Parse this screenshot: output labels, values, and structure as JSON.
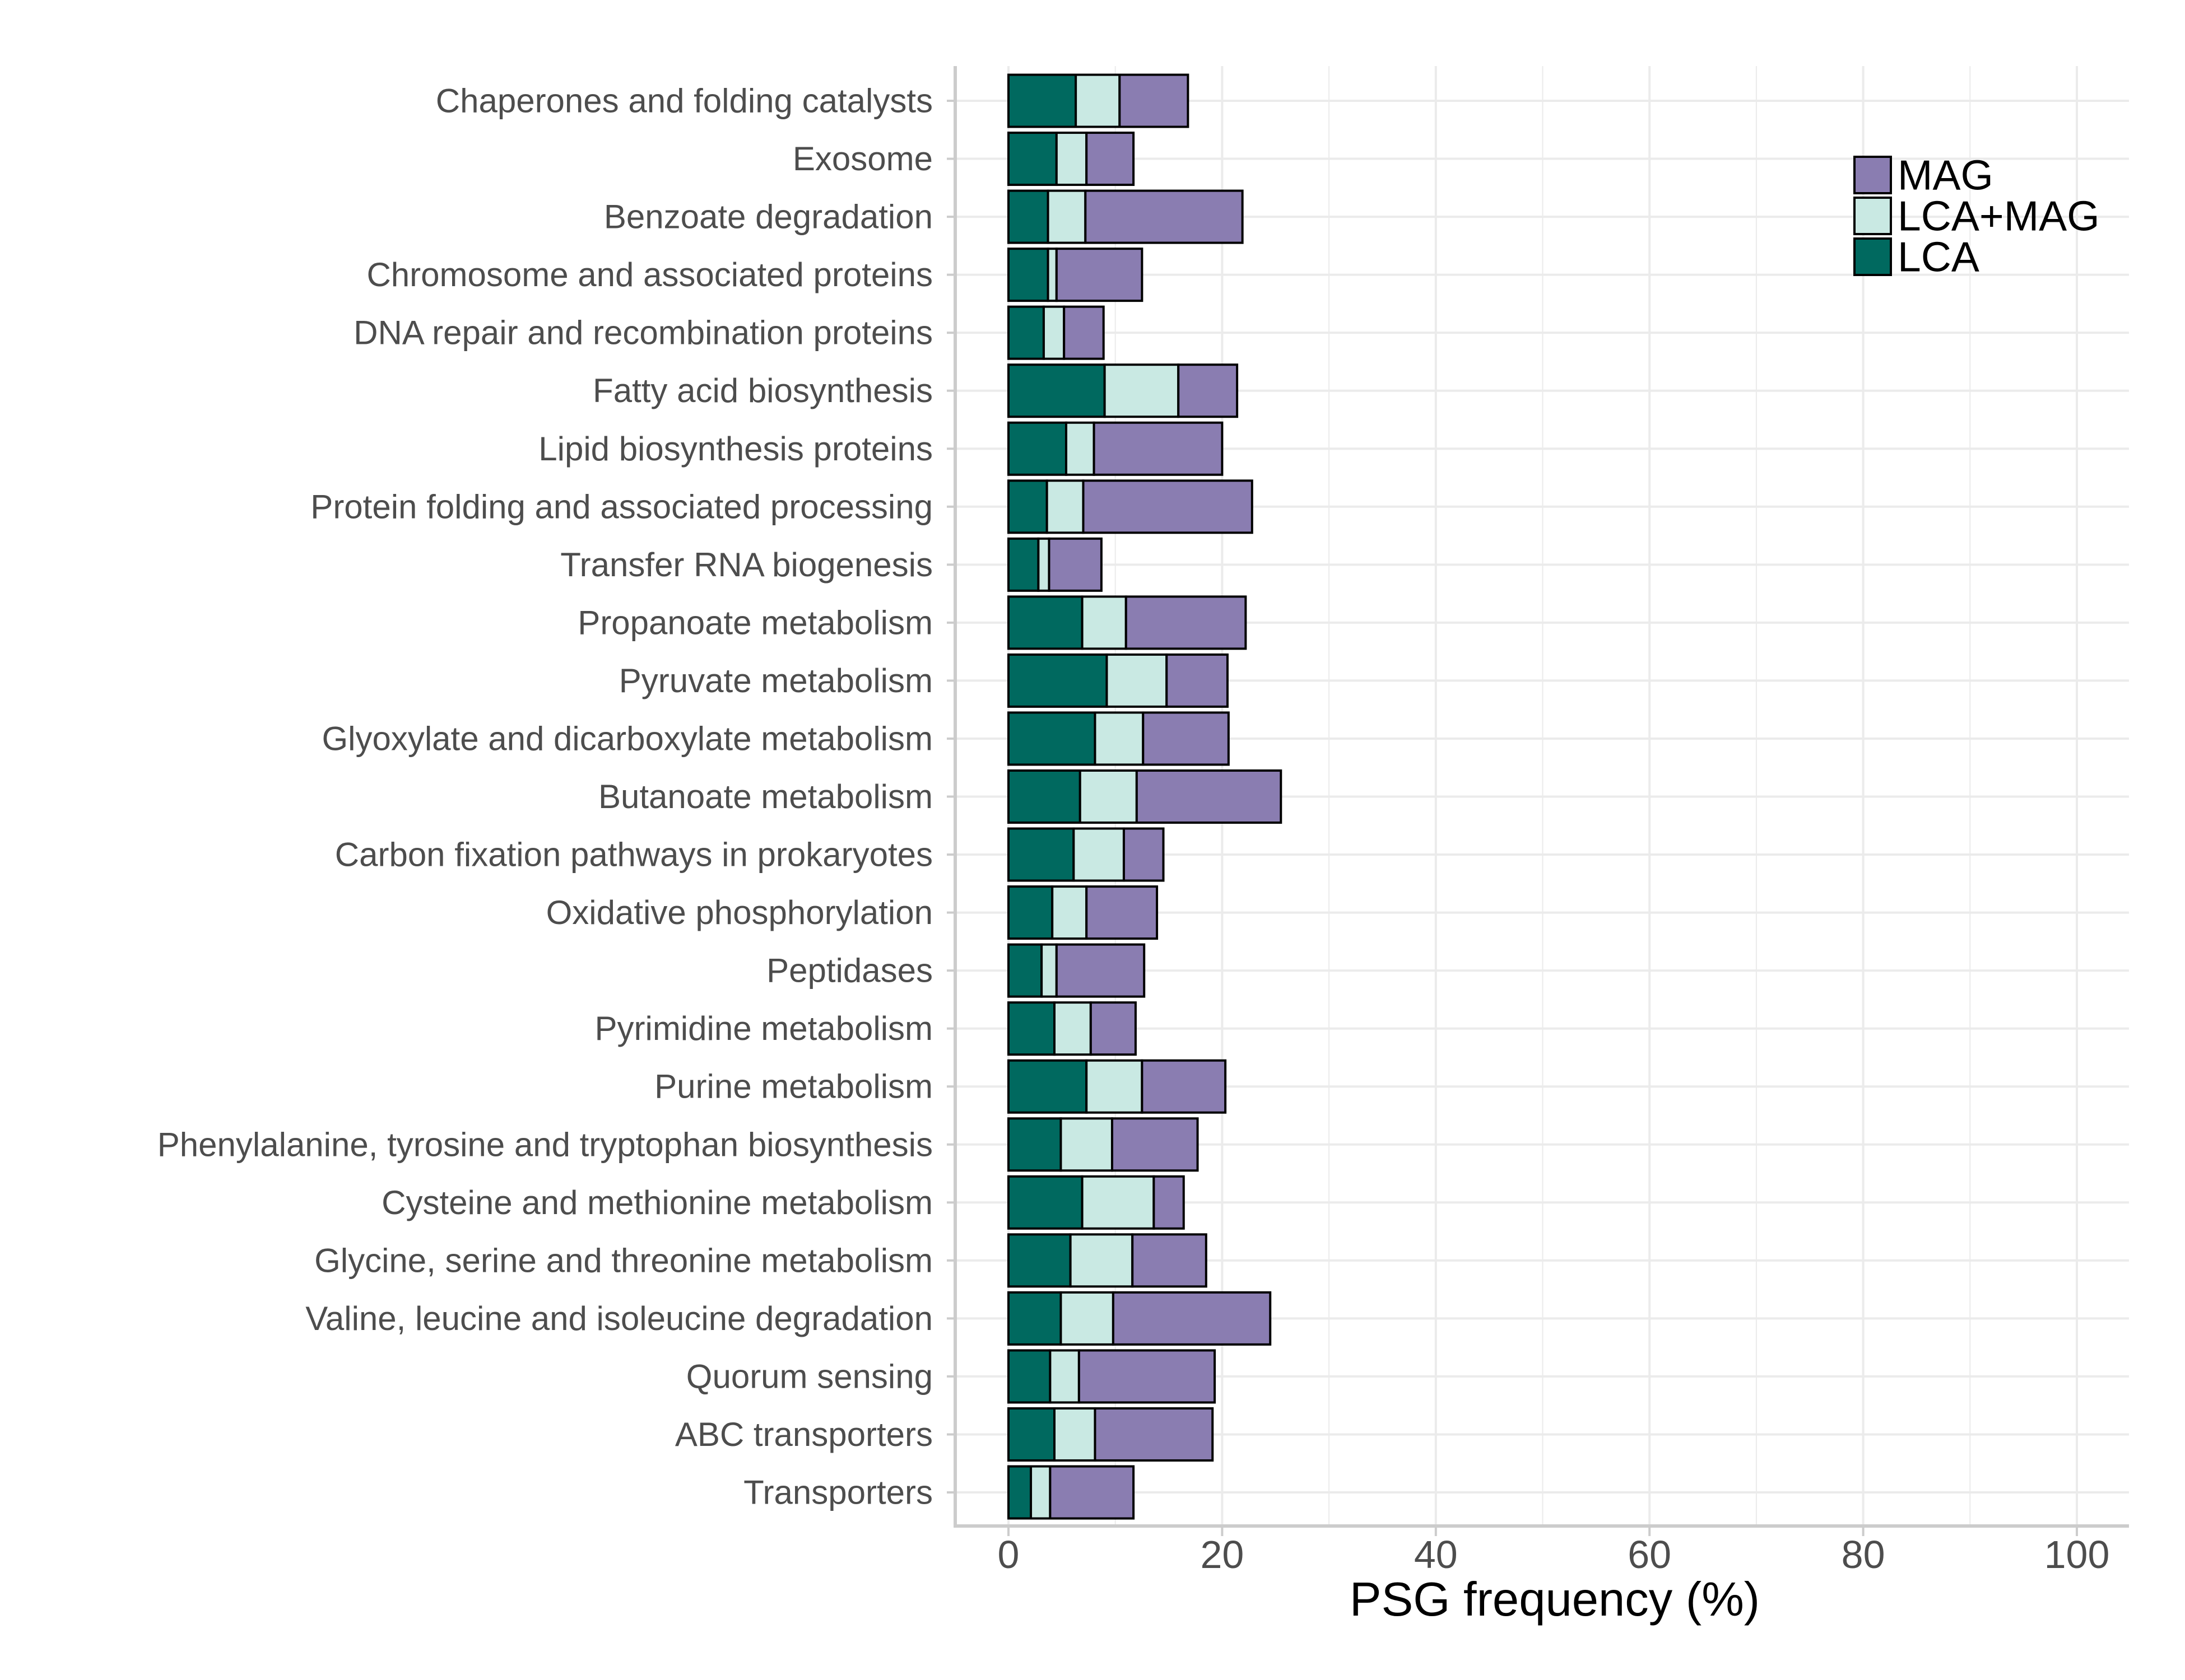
{
  "chart_data": {
    "type": "bar",
    "orientation": "horizontal",
    "stacked": true,
    "xlabel": "PSG frequency (%)",
    "ylabel": "",
    "xlim": [
      0,
      100
    ],
    "xticks": [
      0,
      20,
      40,
      60,
      80,
      100
    ],
    "xtick_labels": [
      "0",
      "20",
      "40",
      "60",
      "80",
      "100"
    ],
    "grid": true,
    "legend_position": "top-right",
    "categories": [
      "Chaperones and folding catalysts",
      "Exosome",
      "Benzoate degradation",
      "Chromosome and associated proteins",
      "DNA repair and recombination proteins",
      "Fatty acid biosynthesis",
      "Lipid biosynthesis proteins",
      "Protein folding and associated processing",
      "Transfer RNA biogenesis",
      "Propanoate metabolism",
      "Pyruvate metabolism",
      "Glyoxylate and dicarboxylate metabolism",
      "Butanoate metabolism",
      "Carbon fixation pathways in prokaryotes",
      "Oxidative phosphorylation",
      "Peptidases",
      "Pyrimidine metabolism",
      "Purine metabolism",
      "Phenylalanine, tyrosine and tryptophan biosynthesis",
      "Cysteine and methionine metabolism",
      "Glycine, serine and threonine metabolism",
      "Valine, leucine and isoleucine degradation",
      "Quorum sensing",
      "ABC transporters",
      "Transporters"
    ],
    "series": [
      {
        "name": "LCA",
        "color": "#00695f",
        "values": [
          6.3,
          4.5,
          3.7,
          3.7,
          3.3,
          9.0,
          5.4,
          3.6,
          2.8,
          6.9,
          9.2,
          8.1,
          6.7,
          6.1,
          4.1,
          3.1,
          4.3,
          7.3,
          4.9,
          6.9,
          5.8,
          4.9,
          3.9,
          4.3,
          2.1
        ]
      },
      {
        "name": "LCA+MAG",
        "color": "#c9e9e3",
        "values": [
          4.1,
          2.8,
          3.5,
          0.8,
          1.9,
          6.9,
          2.6,
          3.4,
          1.0,
          4.1,
          5.6,
          4.5,
          5.3,
          4.7,
          3.2,
          1.4,
          3.4,
          5.2,
          4.8,
          6.7,
          5.8,
          4.9,
          2.7,
          3.8,
          1.8
        ]
      },
      {
        "name": "MAG",
        "color": "#8a7db1",
        "values": [
          6.4,
          4.4,
          14.7,
          8.0,
          3.7,
          5.5,
          12.0,
          15.8,
          4.9,
          11.2,
          5.7,
          8.0,
          13.5,
          3.7,
          6.6,
          8.2,
          4.2,
          7.8,
          8.0,
          2.8,
          6.9,
          14.7,
          12.7,
          11.0,
          7.8
        ]
      }
    ],
    "legend_order": [
      "MAG",
      "LCA+MAG",
      "LCA"
    ]
  }
}
